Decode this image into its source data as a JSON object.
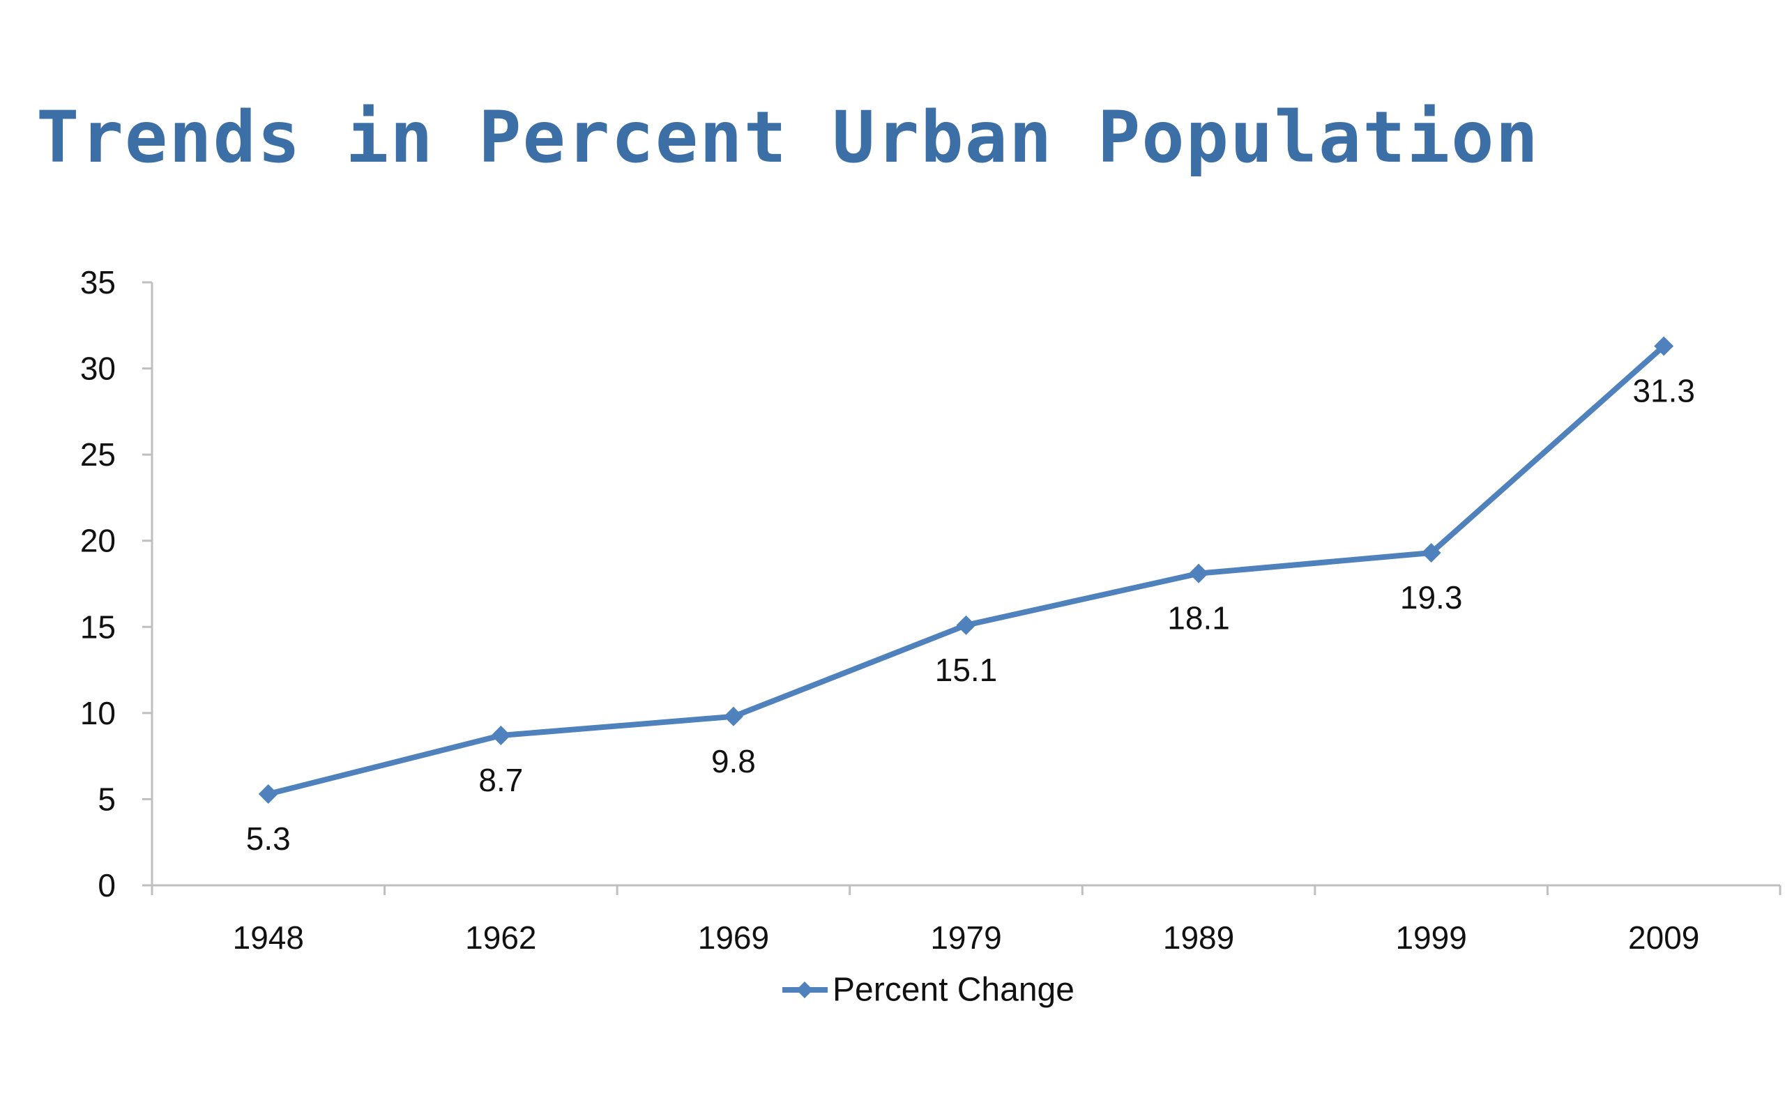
{
  "chart_data": {
    "type": "line",
    "title": "Trends in Percent Urban Population",
    "xlabel": "",
    "ylabel": "",
    "categories": [
      "1948",
      "1962",
      "1969",
      "1979",
      "1989",
      "1999",
      "2009"
    ],
    "series": [
      {
        "name": "Percent Change",
        "values": [
          5.3,
          8.7,
          9.8,
          15.1,
          18.1,
          19.3,
          31.3
        ],
        "color": "#4F81BD",
        "marker": "diamond"
      }
    ],
    "ylim": [
      0,
      35
    ],
    "yticks": [
      "0",
      "5",
      "10",
      "15",
      "20",
      "25",
      "30",
      "35"
    ],
    "data_labels": [
      "5.3",
      "8.7",
      "9.8",
      "15.1",
      "18.1",
      "19.3",
      "31.3"
    ],
    "grid": false,
    "legend": "bottom",
    "colors": {
      "title": "#3C6FA6",
      "axis": "#BFBFBF",
      "text": "#111111"
    }
  }
}
